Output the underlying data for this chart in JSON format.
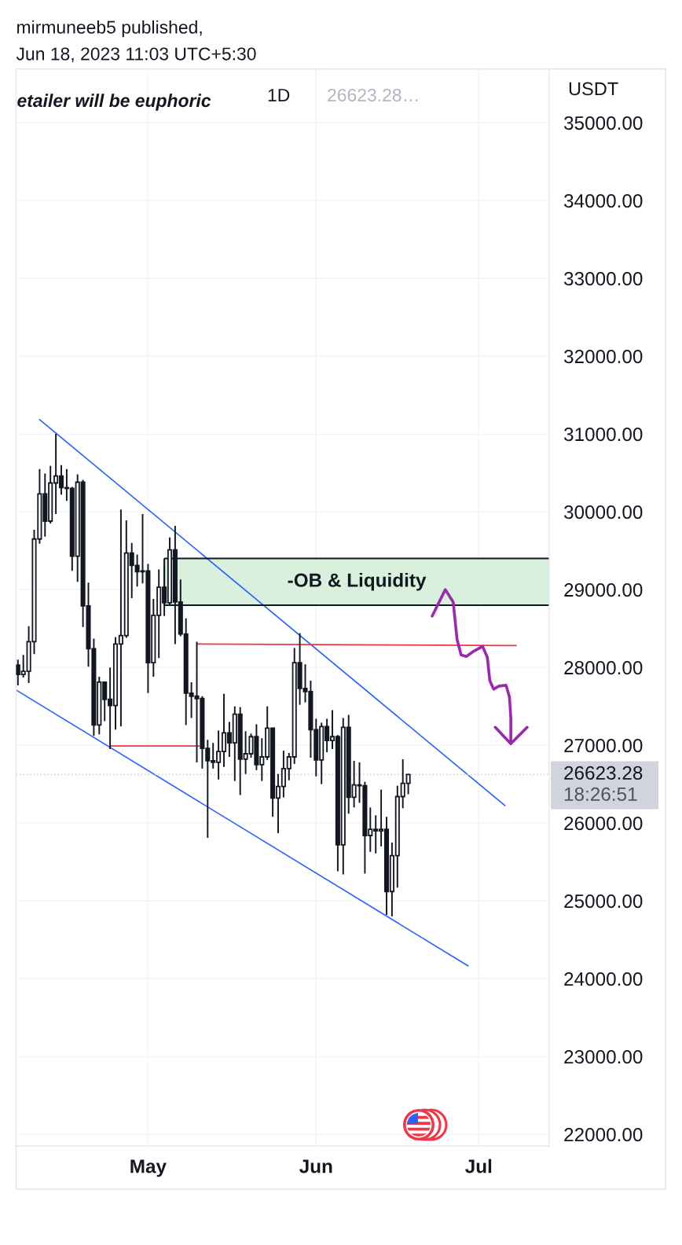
{
  "chart_data": {
    "type": "candlestick",
    "title": "mirmuneeb5 published,",
    "subtitle": "Jun 18, 2023 11:03 UTC+5:30",
    "ylabel": "USDT",
    "xlim": [
      "2023-04-06T16:00",
      "2023-07-14"
    ],
    "xticks": [
      {
        "value": "2023-05-01",
        "label": "May"
      },
      {
        "value": "2023-06-01",
        "label": "Jun"
      },
      {
        "value": "2023-07-01",
        "label": "Jul"
      }
    ],
    "ylim": [
      21850,
      35690
    ],
    "yticks": [
      {
        "value": 22000,
        "label": "22000.00"
      },
      {
        "value": 23000,
        "label": "23000.00"
      },
      {
        "value": 24000,
        "label": "24000.00"
      },
      {
        "value": 25000,
        "label": "25000.00"
      },
      {
        "value": 26000,
        "label": "26000.00"
      },
      {
        "value": 27000,
        "label": "27000.00"
      },
      {
        "value": 28000,
        "label": "28000.00"
      },
      {
        "value": 29000,
        "label": "29000.00"
      },
      {
        "value": 30000,
        "label": "30000.00"
      },
      {
        "value": 31000,
        "label": "31000.00"
      },
      {
        "value": 32000,
        "label": "32000.00"
      },
      {
        "value": 33000,
        "label": "33000.00"
      },
      {
        "value": 34000,
        "label": "34000.00"
      },
      {
        "value": 35000,
        "label": "35000.00"
      }
    ],
    "grid": true,
    "series": [
      {
        "color": "#131722",
        "x": [
          "2023-04-07",
          "2023-04-08",
          "2023-04-09",
          "2023-04-10",
          "2023-04-11",
          "2023-04-12",
          "2023-04-13",
          "2023-04-14",
          "2023-04-15",
          "2023-04-16",
          "2023-04-17",
          "2023-04-18",
          "2023-04-19",
          "2023-04-20",
          "2023-04-21",
          "2023-04-22",
          "2023-04-23",
          "2023-04-24",
          "2023-04-25",
          "2023-04-26",
          "2023-04-27",
          "2023-04-28",
          "2023-04-29",
          "2023-04-30",
          "2023-05-01",
          "2023-05-02",
          "2023-05-03",
          "2023-05-04",
          "2023-05-05",
          "2023-05-06",
          "2023-05-07",
          "2023-05-08",
          "2023-05-09",
          "2023-05-10",
          "2023-05-11",
          "2023-05-12",
          "2023-05-13",
          "2023-05-14",
          "2023-05-15",
          "2023-05-16",
          "2023-05-17",
          "2023-05-18",
          "2023-05-19",
          "2023-05-20",
          "2023-05-21",
          "2023-05-22",
          "2023-05-23",
          "2023-05-24",
          "2023-05-25",
          "2023-05-26",
          "2023-05-27",
          "2023-05-28",
          "2023-05-29",
          "2023-05-30",
          "2023-05-31",
          "2023-06-01",
          "2023-06-02",
          "2023-06-03",
          "2023-06-04",
          "2023-06-05",
          "2023-06-06",
          "2023-06-07",
          "2023-06-08",
          "2023-06-09",
          "2023-06-10",
          "2023-06-11",
          "2023-06-12",
          "2023-06-13",
          "2023-06-14",
          "2023-06-15",
          "2023-06-16",
          "2023-06-17",
          "2023-06-18"
        ],
        "ohlc": [
          [
            28030,
            28100,
            27770,
            27910
          ],
          [
            27910,
            28160,
            27870,
            27950
          ],
          [
            27950,
            28530,
            27800,
            28330
          ],
          [
            28330,
            29770,
            28170,
            29650
          ],
          [
            29650,
            30550,
            29590,
            30230
          ],
          [
            30230,
            30490,
            29680,
            29880
          ],
          [
            29880,
            30590,
            29850,
            30370
          ],
          [
            30370,
            31000,
            29970,
            30460
          ],
          [
            30460,
            30600,
            30220,
            30310
          ],
          [
            30310,
            30550,
            30140,
            30300
          ],
          [
            30300,
            30320,
            29240,
            29430
          ],
          [
            29430,
            30480,
            29100,
            30380
          ],
          [
            30380,
            30410,
            28520,
            28790
          ],
          [
            28790,
            29090,
            28010,
            28240
          ],
          [
            28240,
            28370,
            27120,
            27260
          ],
          [
            27260,
            27880,
            27140,
            27810
          ],
          [
            27810,
            27820,
            27310,
            27590
          ],
          [
            27590,
            28000,
            26950,
            27510
          ],
          [
            27510,
            28390,
            27200,
            28300
          ],
          [
            28300,
            30030,
            27240,
            28410
          ],
          [
            28410,
            29890,
            28380,
            29470
          ],
          [
            29470,
            29600,
            28890,
            29310
          ],
          [
            29310,
            29450,
            29040,
            29230
          ],
          [
            29230,
            29970,
            29080,
            29240
          ],
          [
            29240,
            29330,
            27670,
            28060
          ],
          [
            28060,
            28880,
            27880,
            28670
          ],
          [
            28670,
            29260,
            28120,
            29030
          ],
          [
            29030,
            29300,
            28660,
            28830
          ],
          [
            28830,
            29670,
            28800,
            29510
          ],
          [
            29510,
            29820,
            28300,
            28840
          ],
          [
            28840,
            29130,
            28400,
            28430
          ],
          [
            28430,
            28630,
            27260,
            27670
          ],
          [
            27670,
            27810,
            27350,
            27630
          ],
          [
            27630,
            28330,
            26780,
            27600
          ],
          [
            27600,
            27630,
            26700,
            26960
          ],
          [
            26960,
            27070,
            25810,
            26800
          ],
          [
            26800,
            27030,
            26700,
            26780
          ],
          [
            26780,
            27190,
            26560,
            26920
          ],
          [
            26920,
            27660,
            26720,
            27160
          ],
          [
            27160,
            27300,
            26850,
            27030
          ],
          [
            27030,
            27500,
            26540,
            27400
          ],
          [
            27400,
            27490,
            26360,
            26820
          ],
          [
            26820,
            27180,
            26630,
            26890
          ],
          [
            26890,
            27150,
            26840,
            27110
          ],
          [
            27110,
            27270,
            26680,
            26750
          ],
          [
            26750,
            27090,
            26540,
            26850
          ],
          [
            26850,
            27500,
            26810,
            27220
          ],
          [
            27220,
            27220,
            26080,
            26320
          ],
          [
            26320,
            26630,
            25870,
            26470
          ],
          [
            26470,
            26930,
            26330,
            26700
          ],
          [
            26700,
            26900,
            26550,
            26850
          ],
          [
            26850,
            28250,
            26760,
            28060
          ],
          [
            28060,
            28440,
            27520,
            27730
          ],
          [
            27730,
            28040,
            27550,
            27690
          ],
          [
            27690,
            27830,
            26840,
            27200
          ],
          [
            27200,
            27340,
            26600,
            26810
          ],
          [
            26810,
            27290,
            26500,
            27240
          ],
          [
            27240,
            27340,
            26910,
            27060
          ],
          [
            27060,
            27450,
            26950,
            27110
          ],
          [
            27110,
            27130,
            25380,
            25720
          ],
          [
            25720,
            27350,
            25340,
            27230
          ],
          [
            27230,
            27390,
            26120,
            26330
          ],
          [
            26330,
            26800,
            26200,
            26490
          ],
          [
            26490,
            26780,
            26260,
            26480
          ],
          [
            26480,
            26530,
            25350,
            25840
          ],
          [
            25840,
            26200,
            25630,
            25920
          ],
          [
            25920,
            26100,
            25610,
            25900
          ],
          [
            25900,
            26430,
            25700,
            25920
          ],
          [
            25920,
            26080,
            24820,
            25120
          ],
          [
            25120,
            25750,
            24800,
            25580
          ],
          [
            25580,
            26480,
            25170,
            26340
          ],
          [
            26340,
            26820,
            26190,
            26510
          ],
          [
            26510,
            26630,
            26370,
            26623.28
          ]
        ]
      },
      {
        "type": "line",
        "color": "#2962ff",
        "x": [
          "2023-04-10T22:00",
          "2023-07-05T22:00"
        ],
        "values": [
          31190,
          26220
        ]
      },
      {
        "type": "line",
        "color": "#2962ff",
        "x": [
          "2023-04-06T16:00",
          "2023-06-29T03:00"
        ],
        "values": [
          27710,
          24160
        ]
      },
      {
        "type": "line",
        "color": "#f23645",
        "x": [
          "2023-05-10",
          "2023-07-08"
        ],
        "values": [
          28300,
          28280
        ]
      },
      {
        "type": "line",
        "color": "#f23645",
        "x": [
          "2023-04-24",
          "2023-05-10T12:00"
        ],
        "values": [
          26990,
          26990
        ]
      },
      {
        "type": "line",
        "name": "-OB & Liquidity",
        "color": "#131722",
        "x": [
          "2023-05-04",
          "2023-07-14"
        ],
        "values": [
          29400,
          29400
        ],
        "lower": [
          28800,
          28800
        ],
        "upper": [
          29400,
          29400
        ]
      },
      {
        "type": "line",
        "color": "#131722",
        "x": [
          "2023-07-14",
          "2023-05-04",
          "2023-05-04"
        ],
        "values": [
          28800,
          28800,
          29400
        ]
      },
      {
        "type": "line",
        "color": "#9c27b0",
        "x": [
          "2023-06-22T10:00",
          "2023-06-24T20:00",
          "2023-06-26T07:00",
          "2023-06-27T00:00",
          "2023-06-27T18:00",
          "2023-06-28T17:00",
          "2023-06-30T03:00",
          "2023-07-01T17:00",
          "2023-07-02T14:00",
          "2023-07-03T01:00",
          "2023-07-03T18:00",
          "2023-07-04T18:00",
          "2023-07-06T01:00",
          "2023-07-06T16:00",
          "2023-07-06T22:00",
          "2023-07-06T22:00",
          "2023-07-04T01:00",
          "2023-07-06T22:00",
          "2023-07-09T22:00"
        ],
        "values": [
          28660,
          29000,
          28840,
          28360,
          28160,
          28140,
          28210,
          28270,
          28130,
          27830,
          27720,
          27760,
          27770,
          27620,
          27350,
          27020,
          27230,
          27020,
          27230
        ]
      }
    ],
    "ref_lines": [
      {
        "axis": "y",
        "value": 26623.28,
        "label": "26623.28\n18:26:51",
        "color": "#d1d4dc",
        "line_style": "dotted"
      }
    ],
    "annotations": [
      "etailer will be euphoric",
      "1D",
      "26623.28…"
    ]
  }
}
